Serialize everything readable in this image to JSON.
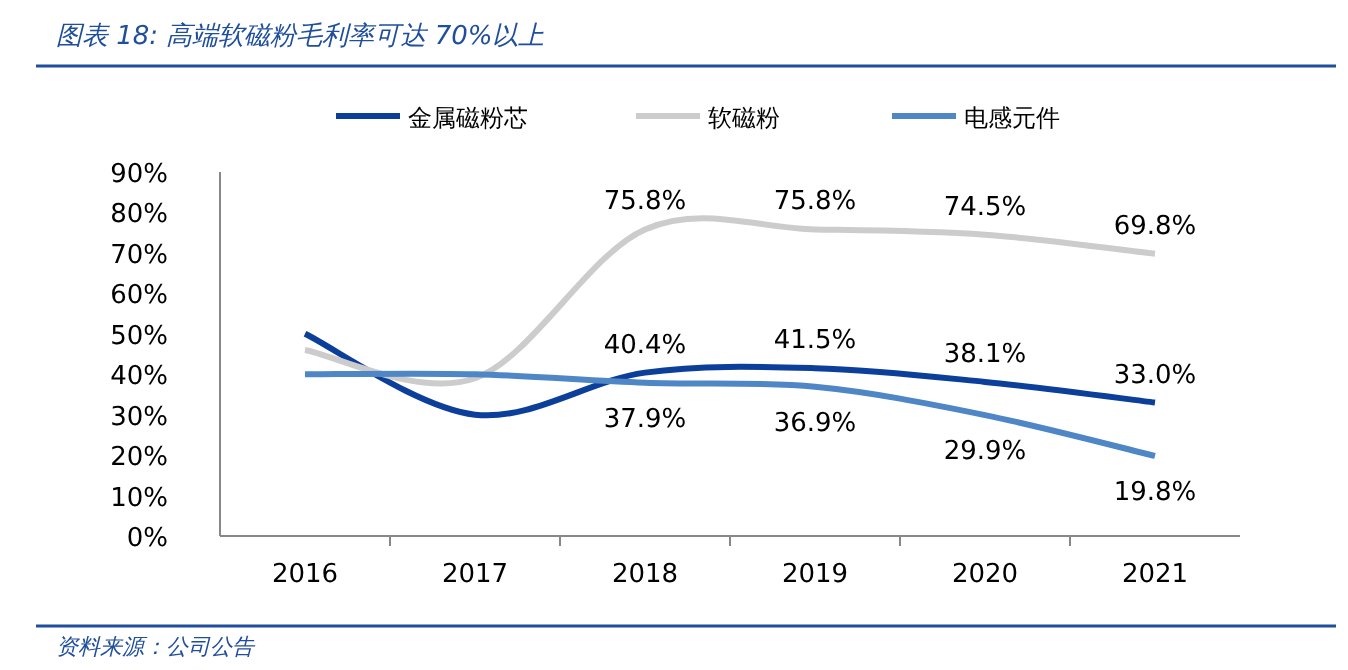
{
  "chart_data": {
    "type": "line",
    "title": "图表 18:  高端软磁粉毛利率可达 70%以上",
    "categories": [
      "2016",
      "2017",
      "2018",
      "2019",
      "2020",
      "2021"
    ],
    "series": [
      {
        "name": "金属磁粉芯",
        "color": "#0b3f9a",
        "values": [
          50,
          30,
          40.4,
          41.5,
          38.1,
          33.0
        ],
        "value_labels": [
          null,
          null,
          "40.4%",
          "41.5%",
          "38.1%",
          "33.0%"
        ]
      },
      {
        "name": "软磁粉",
        "color": "#cccccc",
        "values": [
          46,
          39,
          75.8,
          75.8,
          74.5,
          69.8
        ],
        "value_labels": [
          null,
          null,
          "75.8%",
          "75.8%",
          "74.5%",
          "69.8%"
        ]
      },
      {
        "name": "电感元件",
        "color": "#4f86c6",
        "values": [
          40,
          40,
          37.9,
          36.9,
          29.9,
          19.8
        ],
        "value_labels": [
          null,
          null,
          "37.9%",
          "36.9%",
          "29.9%",
          "19.8%"
        ]
      }
    ],
    "ylim": [
      0,
      90
    ],
    "yticks": [
      {
        "value": 0,
        "label": "0%"
      },
      {
        "value": 10,
        "label": "10%"
      },
      {
        "value": 20,
        "label": "20%"
      },
      {
        "value": 30,
        "label": "30%"
      },
      {
        "value": 40,
        "label": "40%"
      },
      {
        "value": 50,
        "label": "50%"
      },
      {
        "value": 60,
        "label": "60%"
      },
      {
        "value": 70,
        "label": "70%"
      },
      {
        "value": 80,
        "label": "80%"
      },
      {
        "value": 90,
        "label": "90%"
      }
    ],
    "legend": "top",
    "grid": false,
    "marker": "none",
    "line_style": "solid",
    "annotations": [
      "资料来源：公司公告"
    ]
  }
}
